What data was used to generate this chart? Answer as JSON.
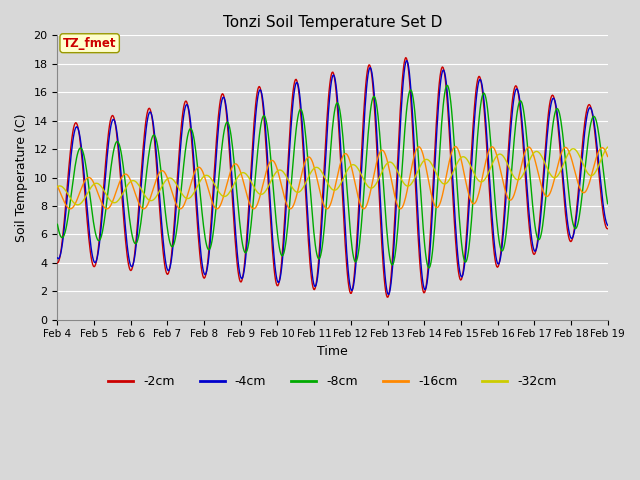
{
  "title": "Tonzi Soil Temperature Set D",
  "xlabel": "Time",
  "ylabel": "Soil Temperature (C)",
  "ylim": [
    0,
    20
  ],
  "yticks": [
    0,
    2,
    4,
    6,
    8,
    10,
    12,
    14,
    16,
    18,
    20
  ],
  "xtick_labels": [
    "Feb 4",
    "Feb 5",
    "Feb 6",
    "Feb 7",
    "Feb 8",
    "Feb 9",
    "Feb 10",
    "Feb 11",
    "Feb 12",
    "Feb 13",
    "Feb 14",
    "Feb 15",
    "Feb 16",
    "Feb 17",
    "Feb 18",
    "Feb 19"
  ],
  "legend_labels": [
    "-2cm",
    "-4cm",
    "-8cm",
    "-16cm",
    "-32cm"
  ],
  "line_colors": [
    "#cc0000",
    "#0000cc",
    "#00aa00",
    "#ff8800",
    "#cccc00"
  ],
  "annotation_text": "TZ_fmet",
  "annotation_color": "#cc0000",
  "annotation_bg": "#ffffcc",
  "plot_bg": "#d8d8d8",
  "grid_color": "#ffffff",
  "days": 15,
  "n_points": 720
}
